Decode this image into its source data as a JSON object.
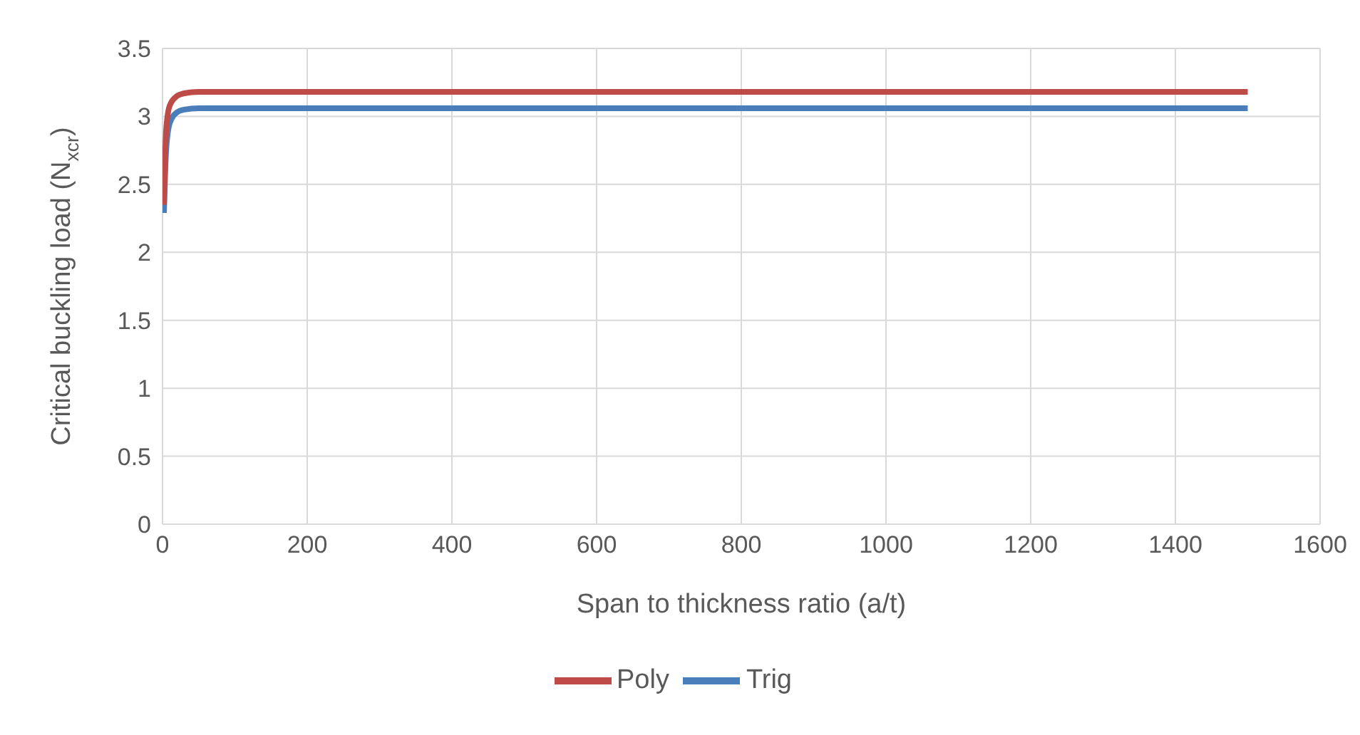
{
  "chart_data": {
    "type": "line",
    "xlabel": "Span to thickness ratio (a/t)",
    "ylabel": "Critical buckling load (N$_{xcr}$)",
    "x": [
      2,
      5,
      10,
      20,
      30,
      50,
      100,
      200,
      500,
      1000,
      1500
    ],
    "series": [
      {
        "name": "Trig",
        "color": "#4a7ebb",
        "values": [
          2.29,
          2.75,
          2.95,
          3.03,
          3.05,
          3.06,
          3.06,
          3.06,
          3.06,
          3.06,
          3.06
        ]
      },
      {
        "name": "Poly",
        "color": "#be4b48",
        "values": [
          2.35,
          2.9,
          3.08,
          3.15,
          3.17,
          3.18,
          3.18,
          3.18,
          3.18,
          3.18,
          3.18
        ]
      }
    ],
    "xlim": [
      0,
      1600
    ],
    "xticks": [
      0,
      200,
      400,
      600,
      800,
      1000,
      1200,
      1400,
      1600
    ],
    "ylim": [
      0,
      3.5
    ],
    "yticks": [
      0,
      0.5,
      1,
      1.5,
      2,
      2.5,
      3,
      3.5
    ],
    "grid": true,
    "legend": "bottom",
    "marker": "none",
    "line_style": "solid"
  }
}
